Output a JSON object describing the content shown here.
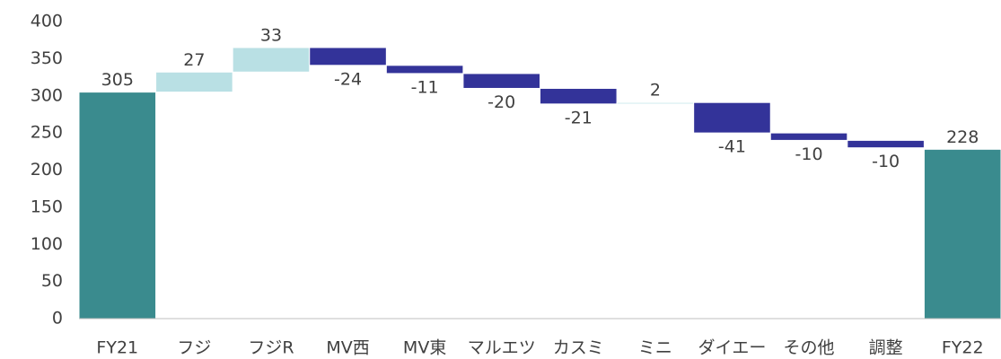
{
  "chart_data": {
    "type": "waterfall",
    "categories": [
      "FY21",
      "フジ",
      "フジR",
      "MV西",
      "MV東",
      "マルエツ",
      "カスミ",
      "ミニ",
      "ダイエー",
      "その他",
      "調整",
      "FY22"
    ],
    "values": [
      305,
      27,
      33,
      -24,
      -11,
      -20,
      -21,
      2,
      -41,
      -10,
      -10,
      228
    ],
    "total_color": "#3a8b8e",
    "increase_color": "#b9e0e4",
    "decrease_color": "#333399",
    "ylim": [
      0,
      400
    ],
    "yticks": [
      0,
      50,
      100,
      150,
      200,
      250,
      300,
      350,
      400
    ],
    "grid": false
  }
}
